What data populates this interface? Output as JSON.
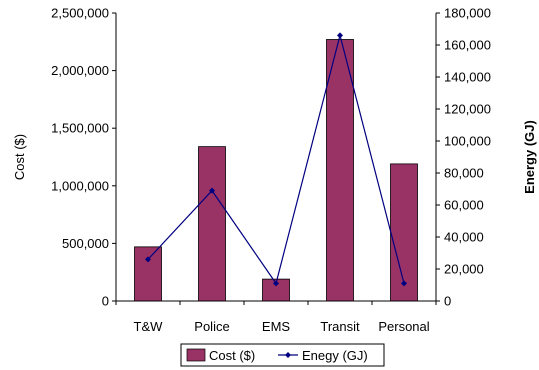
{
  "chart_data": {
    "type": "bar",
    "categories": [
      "T&W",
      "Police",
      "EMS",
      "Transit",
      "Personal"
    ],
    "series": [
      {
        "name": "Cost ($)",
        "kind": "bar",
        "axis": "left",
        "values": [
          470000,
          1340000,
          190000,
          2270000,
          1190000
        ]
      },
      {
        "name": "Enegy (GJ)",
        "kind": "line",
        "axis": "right",
        "values": [
          26000,
          69000,
          11000,
          166000,
          11000
        ]
      }
    ],
    "ylabel": "Cost ($)",
    "y2label": "Energy (GJ)",
    "ylim": [
      0,
      2500000
    ],
    "y2lim": [
      0,
      180000
    ],
    "yticks": [
      "0",
      "500,000",
      "1,000,000",
      "1,500,000",
      "2,000,000",
      "2,500,000"
    ],
    "y2ticks": [
      "0",
      "20,000",
      "40,000",
      "60,000",
      "80,000",
      "100,000",
      "120,000",
      "140,000",
      "160,000",
      "180,000"
    ],
    "grid": false,
    "legend_position": "bottom",
    "colors": {
      "bar": "#993366",
      "line": "#000080"
    }
  }
}
